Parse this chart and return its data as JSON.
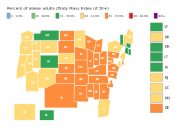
{
  "title": "Percent of obese adults (Body Mass Index of 30+)",
  "legend_entries": [
    {
      "label": "0 - 9.9%",
      "color": "#6baed6"
    },
    {
      "label": "10 - 14.9%",
      "color": "#74c476"
    },
    {
      "label": "15 - 19.9%",
      "color": "#31a354"
    },
    {
      "label": "20 - 24.9%",
      "color": "#fed976"
    },
    {
      "label": "25 - 29.9%",
      "color": "#fd8d3c"
    },
    {
      "label": "30 - 34.9%",
      "color": "#e31a1c"
    },
    {
      "label": "35%+",
      "color": "#800080"
    }
  ],
  "state_colors": {
    "AL": "#fd8d3c",
    "AK": "#fed976",
    "AZ": "#fed976",
    "AR": "#fd8d3c",
    "CA": "#fed976",
    "CO": "#31a354",
    "CT": "#31a354",
    "DE": "#fd8d3c",
    "FL": "#fed976",
    "GA": "#fd8d3c",
    "HI": "#31a354",
    "ID": "#fed976",
    "IL": "#fd8d3c",
    "IN": "#fd8d3c",
    "IA": "#fd8d3c",
    "KS": "#fd8d3c",
    "KY": "#fd8d3c",
    "LA": "#fd8d3c",
    "ME": "#fed976",
    "MD": "#fed976",
    "MA": "#31a354",
    "MI": "#fd8d3c",
    "MN": "#fed976",
    "MS": "#fd8d3c",
    "MO": "#fd8d3c",
    "MT": "#31a354",
    "NE": "#fed976",
    "NV": "#fed976",
    "NH": "#fed976",
    "NJ": "#fed976",
    "NM": "#fed976",
    "NY": "#fed976",
    "NC": "#fd8d3c",
    "ND": "#fd8d3c",
    "OH": "#fd8d3c",
    "OK": "#fd8d3c",
    "OR": "#fed976",
    "PA": "#fd8d3c",
    "RI": "#31a354",
    "SC": "#fd8d3c",
    "SD": "#fd8d3c",
    "TN": "#fd8d3c",
    "TX": "#fd8d3c",
    "UT": "#fed976",
    "VT": "#31a354",
    "VA": "#fd8d3c",
    "WA": "#fed976",
    "WV": "#fd8d3c",
    "WI": "#fd8d3c",
    "WY": "#fed976",
    "DC": "#fed976"
  },
  "side_legend": [
    {
      "label": "VT",
      "color": "#31a354"
    },
    {
      "label": "NH",
      "color": "#fed976"
    },
    {
      "label": "MA",
      "color": "#31a354"
    },
    {
      "label": "CT",
      "color": "#31a354"
    },
    {
      "label": "RI",
      "color": "#31a354"
    },
    {
      "label": "NJ",
      "color": "#fed976"
    },
    {
      "label": "DC",
      "color": "#fed976"
    },
    {
      "label": "MD",
      "color": "#fed976"
    },
    {
      "label": "DE",
      "color": "#fd8d3c"
    }
  ],
  "background_color": "#ffffff",
  "map_bg": "#b8d4e8"
}
